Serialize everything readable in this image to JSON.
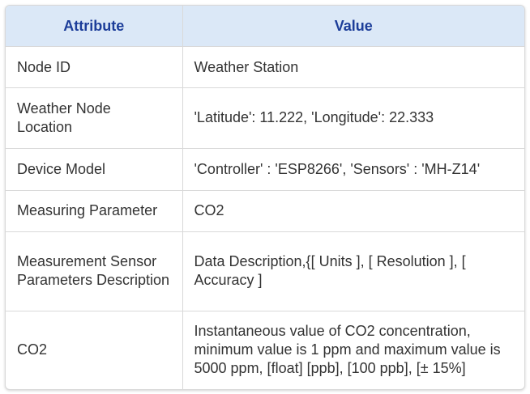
{
  "table": {
    "headers": {
      "attribute": "Attribute",
      "value": "Value"
    },
    "rows": [
      {
        "attribute": "Node ID",
        "value": "Weather Station"
      },
      {
        "attribute": "Weather Node Location",
        "value": "'Latitude': 11.222, 'Longitude': 22.333"
      },
      {
        "attribute": "Device Model",
        "value": "'Controller' : 'ESP8266', 'Sensors' : 'MH-Z14'"
      },
      {
        "attribute": "Measuring Parameter",
        "value": "CO2"
      },
      {
        "attribute": "Measurement Sensor Parameters Description",
        "value": "Data Description,{[ Units ], [ Resolution ], [ Accuracy ]"
      },
      {
        "attribute": "CO2",
        "value": "Instantaneous value of CO2 concentration, minimum value is 1 ppm and maximum value is 5000 ppm, [float] [ppb], [100 ppb], [± 15%]"
      }
    ]
  },
  "colors": {
    "header_background": "#dbe8f7",
    "header_text": "#1c3d99",
    "body_text": "#333333",
    "border": "#d9d9d9"
  }
}
